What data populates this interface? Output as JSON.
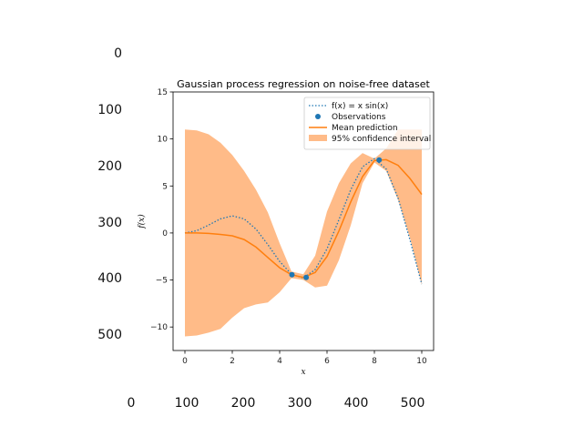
{
  "outer_ticks": {
    "y": [
      "0",
      "100",
      "200",
      "300",
      "400",
      "500"
    ],
    "x": [
      "0",
      "100",
      "200",
      "300",
      "400",
      "500"
    ]
  },
  "chart_data": {
    "type": "line",
    "title": "Gaussian process regression on noise-free dataset",
    "xlabel": "x",
    "ylabel": "f(x)",
    "xlim": [
      -0.5,
      10.5
    ],
    "ylim": [
      -12.5,
      15
    ],
    "x_ticks": [
      "0",
      "2",
      "4",
      "6",
      "8",
      "10"
    ],
    "y_ticks": [
      "−10",
      "−5",
      "0",
      "5",
      "10",
      "15"
    ],
    "grid": false,
    "legend_placement": "top-right",
    "legend": [
      "f(x) = x sin(x)",
      "Observations",
      "Mean prediction",
      "95% confidence interval"
    ],
    "observations": {
      "x": [
        4.52,
        5.12,
        8.2
      ],
      "y": [
        -4.44,
        -4.72,
        7.77
      ]
    },
    "series": [
      {
        "name": "f(x) = x sin(x)",
        "style": "dotted",
        "color": "#1f77b4",
        "x": [
          0,
          0.5,
          1.0,
          1.5,
          2.0,
          2.5,
          3.0,
          3.5,
          4.0,
          4.5,
          5.0,
          5.5,
          6.0,
          6.5,
          7.0,
          7.5,
          8.0,
          8.5,
          9.0,
          9.5,
          10.0
        ],
        "y": [
          0,
          0.24,
          0.84,
          1.5,
          1.82,
          1.5,
          0.42,
          -1.23,
          -3.03,
          -4.4,
          -4.79,
          -3.89,
          -1.68,
          1.4,
          4.6,
          7.04,
          7.91,
          6.8,
          3.71,
          -0.72,
          -5.44
        ]
      },
      {
        "name": "Mean prediction",
        "style": "solid",
        "color": "#ff7f0e",
        "x": [
          0,
          0.5,
          1.0,
          1.5,
          2.0,
          2.5,
          3.0,
          3.5,
          4.0,
          4.5,
          5.0,
          5.5,
          6.0,
          6.5,
          7.0,
          7.5,
          8.0,
          8.5,
          9.0,
          9.5,
          10.0
        ],
        "y": [
          0,
          0,
          -0.05,
          -0.15,
          -0.3,
          -0.7,
          -1.5,
          -2.6,
          -3.7,
          -4.44,
          -4.72,
          -4.2,
          -2.5,
          0.2,
          3.3,
          6.0,
          7.7,
          7.8,
          7.2,
          5.8,
          4.1
        ]
      }
    ],
    "confidence_interval": {
      "name": "95% confidence interval",
      "color": "#ffbb88",
      "x": [
        0,
        0.5,
        1.0,
        1.5,
        2.0,
        2.5,
        3.0,
        3.5,
        4.0,
        4.5,
        5.0,
        5.5,
        6.0,
        6.5,
        7.0,
        7.5,
        8.0,
        8.5,
        9.0,
        9.5,
        10.0
      ],
      "upper": [
        11.0,
        10.9,
        10.5,
        9.6,
        8.3,
        6.6,
        4.6,
        2.2,
        -1.1,
        -4.1,
        -4.4,
        -2.4,
        2.3,
        5.3,
        7.4,
        8.5,
        7.9,
        9.0,
        11.0,
        11.0,
        11.0
      ],
      "lower": [
        -11.0,
        -10.9,
        -10.6,
        -10.2,
        -9.0,
        -8.0,
        -7.6,
        -7.4,
        -6.3,
        -4.8,
        -5.0,
        -5.8,
        -5.6,
        -2.9,
        0.8,
        5.3,
        7.5,
        6.6,
        3.5,
        -0.5,
        -5.5
      ]
    }
  }
}
